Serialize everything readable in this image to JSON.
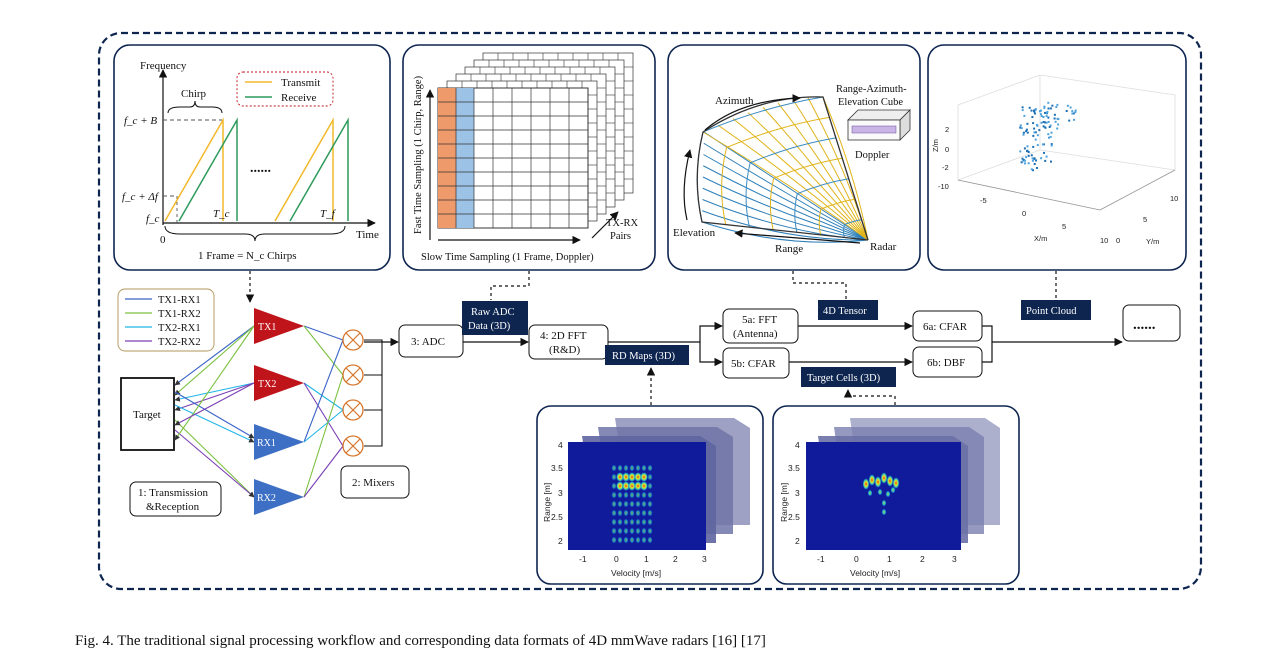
{
  "caption": "Fig. 4.  The traditional signal processing workflow and corresponding data formats of 4D mmWave radars [16] [17]",
  "chirp_panel": {
    "ylabel": "Frequency",
    "xlabel": "Time",
    "chirp": "Chirp",
    "legend": [
      "Transmit",
      "Receive"
    ],
    "y_ticks": [
      "f_c + B",
      "f_c + Δf",
      "f_c"
    ],
    "x_ticks": [
      "0",
      "T_c",
      "T_f"
    ],
    "dots": "......",
    "frame": "1 Frame = N_c Chirps",
    "colors": {
      "transmit": "#f2b92a",
      "receive": "#2e9a5c"
    }
  },
  "adc_cube": {
    "fast_time": "Fast Time Sampling (1 Chirp, Range)",
    "slow_time": "Slow Time Sampling (1 Frame, Doppler)",
    "pairs": [
      "TX-RX",
      "Pairs"
    ],
    "colors": {
      "col1": "#ef9a6a",
      "col2": "#9cc3e6"
    }
  },
  "fov_panel": {
    "azimuth": "Azimuth",
    "elevation": "Elevation",
    "range": "Range",
    "radar": "Radar",
    "cube": [
      "Range-Azimuth-",
      "Elevation Cube"
    ],
    "doppler": "Doppler"
  },
  "point_cloud_panel": {
    "z_label": "Z/m",
    "x_label": "X/m",
    "y_label": "Y/m",
    "z_ticks": [
      "2",
      "0",
      "-2",
      "-10"
    ],
    "x_ticks": [
      "-5",
      "0",
      "5",
      "10"
    ],
    "y_ticks": [
      "0",
      "5",
      "10"
    ]
  },
  "antennas": {
    "legend": [
      "TX1-RX1",
      "TX1-RX2",
      "TX2-RX1",
      "TX2-RX2"
    ],
    "legend_colors": [
      "#3a64c8",
      "#7cc142",
      "#22b6e6",
      "#7b3fb5"
    ],
    "tx": [
      "TX1",
      "TX2"
    ],
    "rx": [
      "RX1",
      "RX2"
    ],
    "target": "Target",
    "step1": [
      "1: Transmission",
      "&Reception"
    ],
    "step2": "2: Mixers"
  },
  "pipeline": {
    "adc": "3: ADC",
    "fft2d": [
      "4: 2D FFT",
      "(R&D)"
    ],
    "fft_antenna": [
      "5a: FFT",
      "(Antenna)"
    ],
    "cfar5": "5b: CFAR",
    "cfar6": "6a: CFAR",
    "dbf": "6b: DBF",
    "more": "......"
  },
  "tags": {
    "raw_adc": [
      "Raw ADC",
      "Data (3D)"
    ],
    "rd_maps": "RD Maps (3D)",
    "tensor": "4D Tensor",
    "target_cells": "Target Cells (3D)",
    "point_cloud": "Point Cloud"
  },
  "rd_map_left": {
    "ylabel": "Range [m]",
    "xlabel": "Velocity [m/s]",
    "y_ticks": [
      "4",
      "3.5",
      "3",
      "2.5",
      "2"
    ],
    "x_ticks": [
      "-1",
      "0",
      "1",
      "2",
      "3"
    ]
  },
  "rd_map_right": {
    "ylabel": "Range [m]",
    "xlabel": "Velocity [m/s]",
    "y_ticks": [
      "4",
      "3.5",
      "3",
      "2.5",
      "2"
    ],
    "x_ticks": [
      "-1",
      "0",
      "1",
      "2",
      "3"
    ]
  },
  "style": {
    "navy": "#0e2550",
    "tx_red": "#c0141b",
    "rx_blue": "#3d6fc4",
    "mixer": "#d6762c"
  }
}
